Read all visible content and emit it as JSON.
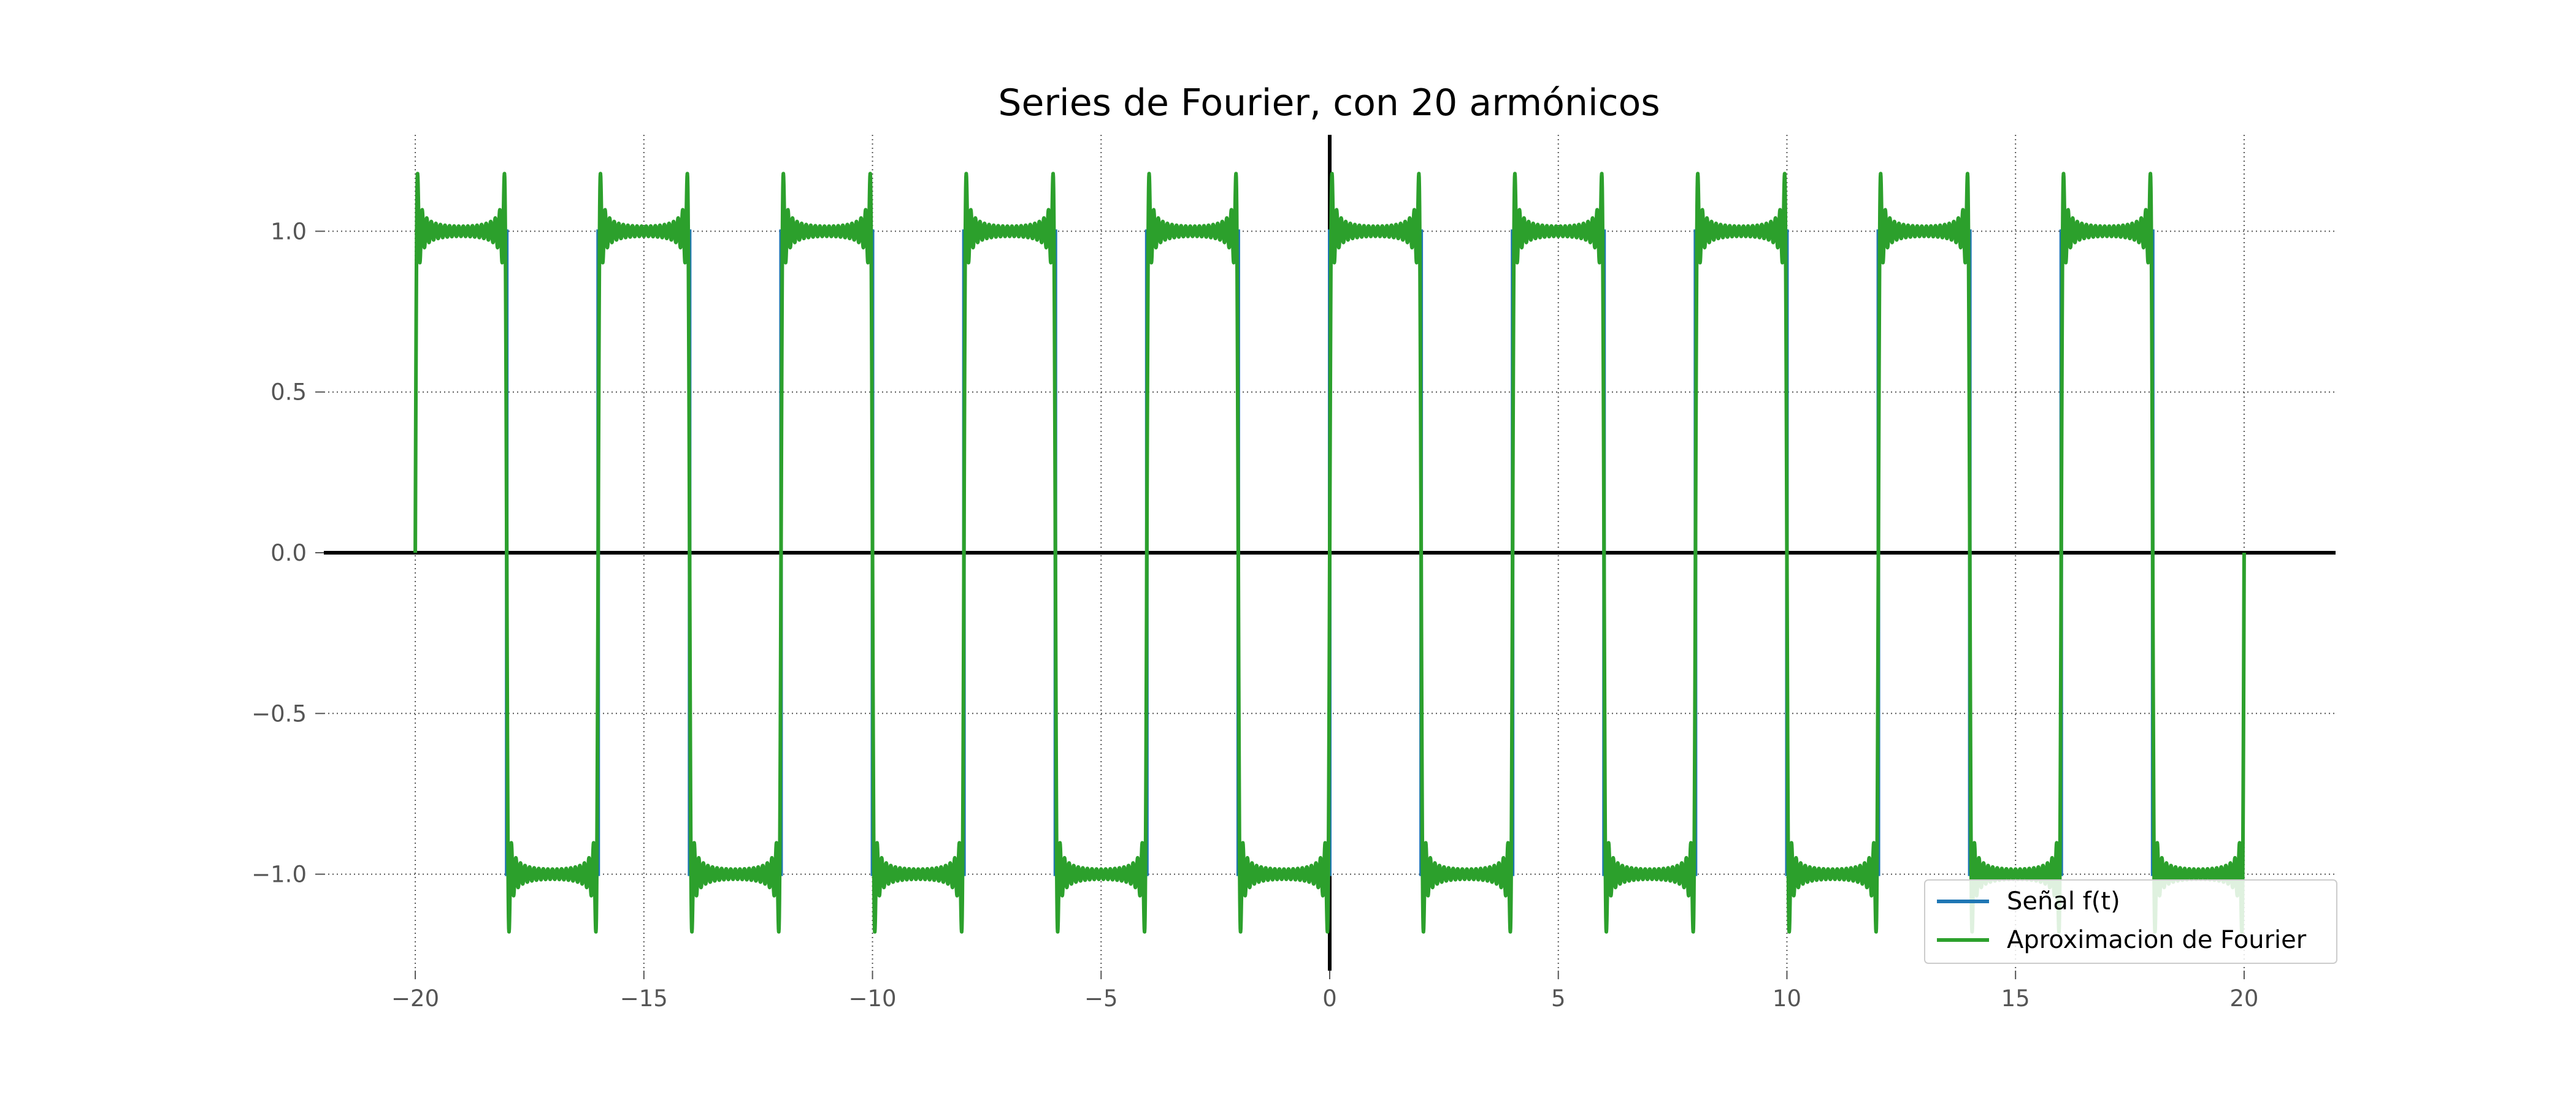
{
  "chart_data": {
    "type": "line",
    "title": "Series de Fourier, con 20 armónicos",
    "xlabel": "",
    "ylabel": "",
    "xlim": [
      -22,
      22
    ],
    "ylim": [
      -1.3,
      1.3
    ],
    "x_ticks": [
      -20,
      -15,
      -10,
      -5,
      0,
      5,
      10,
      15,
      20
    ],
    "x_tick_labels": [
      "−20",
      "−15",
      "−10",
      "−5",
      "0",
      "5",
      "10",
      "15",
      "20"
    ],
    "y_ticks": [
      1.0,
      0.5,
      0.0,
      -0.5,
      -1.0
    ],
    "y_tick_labels": [
      "1.0",
      "0.5",
      "0.0",
      "−0.5",
      "−1.0"
    ],
    "grid": true,
    "grid_style": "dotted",
    "zero_axes": true,
    "legend_position": "lower-right",
    "series": [
      {
        "name": "Señal f(t)",
        "color": "#1f77b4",
        "kind": "square-wave",
        "period": 4,
        "amplitude": 1,
        "domain": [
          -20,
          20
        ],
        "points_x": [
          -20,
          -18,
          -18,
          -16,
          -16,
          -14,
          -14,
          -12,
          -12,
          -10,
          -10,
          -8,
          -8,
          -6,
          -6,
          -4,
          -4,
          -2,
          -2,
          0,
          0,
          2,
          2,
          4,
          4,
          6,
          6,
          8,
          8,
          10,
          10,
          12,
          12,
          14,
          14,
          16,
          16,
          18,
          18,
          20
        ],
        "points_y": [
          1,
          1,
          -1,
          -1,
          1,
          1,
          -1,
          -1,
          1,
          1,
          -1,
          -1,
          1,
          1,
          -1,
          -1,
          1,
          1,
          -1,
          -1,
          1,
          1,
          -1,
          -1,
          1,
          1,
          -1,
          -1,
          1,
          1,
          -1,
          -1,
          1,
          1,
          -1,
          -1,
          1,
          1,
          -1,
          -1
        ]
      },
      {
        "name": "Aproximacion de Fourier",
        "color": "#2ca02c",
        "kind": "fourier-series",
        "harmonics": 20,
        "period": 4,
        "domain": [
          -20,
          20
        ],
        "formula": "sum over n=1..20, odd n: (4/(n*pi)) * sin(n*pi*t/2)",
        "peak_overshoot": 1.18
      }
    ]
  }
}
